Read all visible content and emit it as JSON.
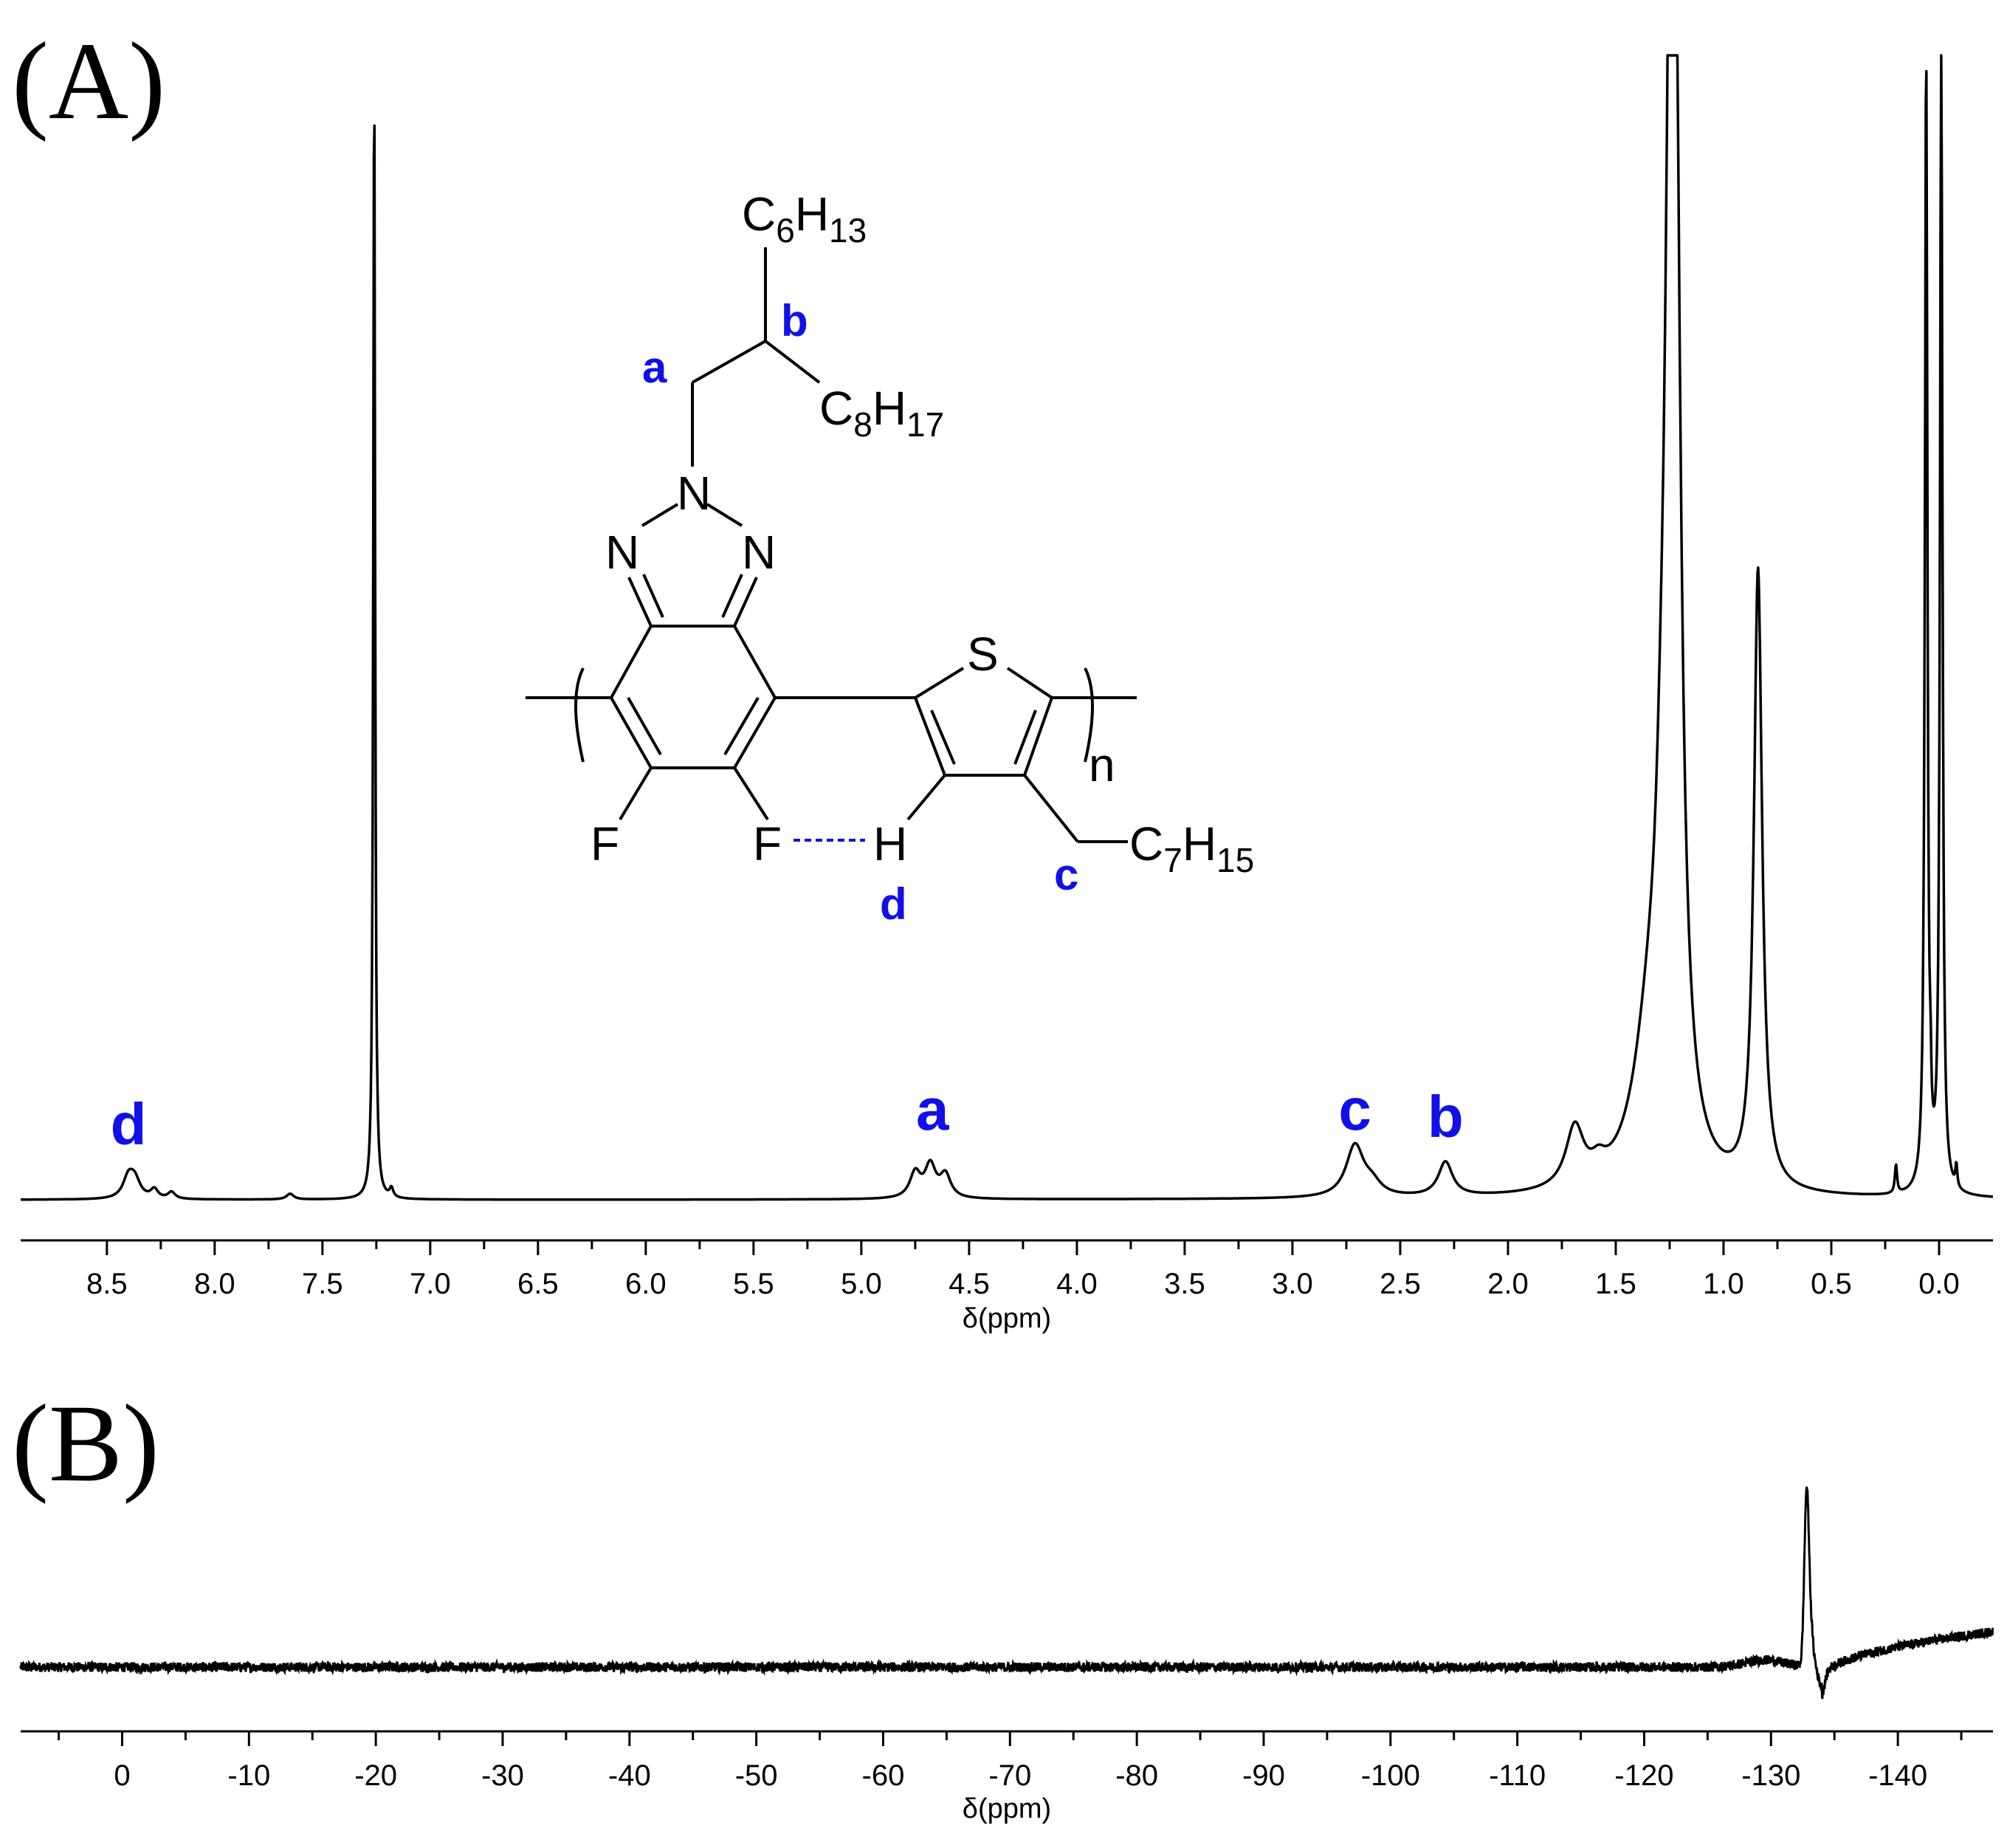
{
  "figure": {
    "panel_a_label": "(A)",
    "panel_b_label": "(B)"
  },
  "chart_data": [
    {
      "type": "line",
      "panel": "(A)",
      "xlabel": "δ(ppm)",
      "xlim": [
        8.9,
        -0.25
      ],
      "ylim": [
        0,
        1
      ],
      "x_axis_direction": "reversed",
      "x_ticks": [
        "8.5",
        "8.0",
        "7.5",
        "7.0",
        "6.5",
        "6.0",
        "5.5",
        "5.0",
        "4.5",
        "4.0",
        "3.5",
        "3.0",
        "2.5",
        "2.0",
        "1.5",
        "1.0",
        "0.5",
        "0.0"
      ],
      "x_tick_values": [
        8.5,
        8.0,
        7.5,
        7.0,
        6.5,
        6.0,
        5.5,
        5.0,
        4.5,
        4.0,
        3.5,
        3.0,
        2.5,
        2.0,
        1.5,
        1.0,
        0.5,
        0.0
      ],
      "grid": false,
      "peaks": [
        {
          "x": 8.4,
          "height": 0.018,
          "width": 0.03
        },
        {
          "x": 8.37,
          "height": 0.015,
          "width": 0.03
        },
        {
          "x": 8.28,
          "height": 0.008,
          "width": 0.02
        },
        {
          "x": 8.2,
          "height": 0.006,
          "width": 0.02
        },
        {
          "x": 7.65,
          "height": 0.005,
          "width": 0.02
        },
        {
          "x": 7.26,
          "height": 1.0,
          "width": 0.005
        },
        {
          "x": 7.18,
          "height": 0.008,
          "width": 0.01
        },
        {
          "x": 4.75,
          "height": 0.022,
          "width": 0.03
        },
        {
          "x": 4.68,
          "height": 0.028,
          "width": 0.03
        },
        {
          "x": 4.61,
          "height": 0.02,
          "width": 0.03
        },
        {
          "x": 2.71,
          "height": 0.045,
          "width": 0.05
        },
        {
          "x": 2.63,
          "height": 0.01,
          "width": 0.05
        },
        {
          "x": 2.29,
          "height": 0.03,
          "width": 0.04
        },
        {
          "x": 1.69,
          "height": 0.052,
          "width": 0.05
        },
        {
          "x": 1.58,
          "height": 0.012,
          "width": 0.04
        },
        {
          "x": 1.34,
          "height": 0.12,
          "width": 0.09
        },
        {
          "x": 1.245,
          "height": 0.74,
          "width": 0.03
        },
        {
          "x": 1.225,
          "height": 0.68,
          "width": 0.03
        },
        {
          "x": 1.29,
          "height": 0.09,
          "width": 0.03
        },
        {
          "x": 0.84,
          "height": 0.54,
          "width": 0.023
        },
        {
          "x": 0.2,
          "height": 0.025,
          "width": 0.006
        },
        {
          "x": 0.06,
          "height": 1.0,
          "width": 0.007
        },
        {
          "x": 0.04,
          "height": 0.04,
          "width": 0.004
        },
        {
          "x": -0.01,
          "height": 1.0,
          "width": 0.007
        },
        {
          "x": -0.08,
          "height": 0.02,
          "width": 0.005
        }
      ],
      "annotations": [
        {
          "text": "d",
          "x": 8.4
        },
        {
          "text": "a",
          "x": 4.67
        },
        {
          "text": "c",
          "x": 2.71
        },
        {
          "text": "b",
          "x": 2.29
        }
      ]
    },
    {
      "type": "line",
      "panel": "(B)",
      "xlabel": "δ(ppm)",
      "xlim": [
        8,
        -147.5
      ],
      "x_axis_direction": "reversed",
      "x_ticks": [
        "0",
        "-10",
        "-20",
        "-30",
        "-40",
        "-50",
        "-60",
        "-70",
        "-80",
        "-90",
        "-100",
        "-110",
        "-120",
        "-130",
        "-140"
      ],
      "x_tick_values": [
        0,
        -10,
        -20,
        -30,
        -40,
        -50,
        -60,
        -70,
        -80,
        -90,
        -100,
        -110,
        -120,
        -130,
        -140
      ],
      "grid": false,
      "features": [
        {
          "kind": "baseline",
          "from": 8,
          "to": -125,
          "level": 0.0,
          "noise": 0.01
        },
        {
          "kind": "positive-peak",
          "x": -132.8,
          "height": 0.93
        },
        {
          "kind": "negative-dip",
          "x": -133.8,
          "height": -0.11
        },
        {
          "kind": "rising-baseline",
          "from": -134,
          "to": -147.5,
          "level_start": -0.06,
          "level_end": 0.2
        }
      ]
    }
  ],
  "structure": {
    "atoms": {
      "n1": "N",
      "n2": "N",
      "n3": "N",
      "s": "S",
      "f1": "F",
      "f2": "F",
      "h": "H",
      "repeat": "n"
    },
    "substituents": {
      "top": {
        "main": "C",
        "sub1": "6",
        "mid": "H",
        "sub2": "13"
      },
      "right": {
        "main": "C",
        "sub1": "8",
        "mid": "H",
        "sub2": "17"
      },
      "thiophene": {
        "main": "C",
        "sub1": "7",
        "mid": "H",
        "sub2": "15"
      }
    },
    "labels": {
      "a": "a",
      "b": "b",
      "c": "c",
      "d": "d"
    },
    "label_color": "#1010e8"
  }
}
